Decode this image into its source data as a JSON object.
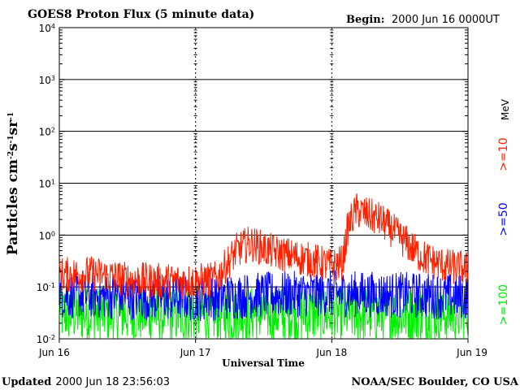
{
  "chart_data": {
    "type": "line",
    "title": "GOES8 Proton Flux (5 minute data)",
    "begin_label": "Begin:",
    "begin_value": "2000 Jun 16 0000UT",
    "xlabel": "Universal Time",
    "ylabel": "Particles cm",
    "ylabel_exp1": "-2",
    "ylabel_s": "s",
    "ylabel_exp2": "-1",
    "ylabel_sr": "sr",
    "ylabel_exp3": "-1",
    "yscale": "log",
    "ylim": [
      0.01,
      10000
    ],
    "yticks": [
      {
        "base": "10",
        "exp": "-2",
        "value": 0.01
      },
      {
        "base": "10",
        "exp": "-1",
        "value": 0.1
      },
      {
        "base": "10",
        "exp": "0",
        "value": 1
      },
      {
        "base": "10",
        "exp": "1",
        "value": 10
      },
      {
        "base": "10",
        "exp": "2",
        "value": 100
      },
      {
        "base": "10",
        "exp": "3",
        "value": 1000
      },
      {
        "base": "10",
        "exp": "4",
        "value": 10000
      }
    ],
    "xticks": [
      "Jun 16",
      "Jun 17",
      "Jun 18",
      "Jun 19"
    ],
    "xlim_days": [
      0,
      3
    ],
    "legend_unit": "MeV",
    "series": [
      {
        "name": ">=10",
        "color": "#ff2000",
        "x": [
          0,
          0.25,
          0.5,
          0.75,
          1.0,
          1.15,
          1.3,
          1.4,
          1.5,
          1.6,
          1.7,
          1.8,
          1.9,
          2.0,
          2.08,
          2.12,
          2.18,
          2.25,
          2.35,
          2.45,
          2.55,
          2.65,
          2.75,
          2.85,
          3.0
        ],
        "y": [
          0.17,
          0.18,
          0.14,
          0.13,
          0.13,
          0.14,
          0.5,
          0.7,
          0.55,
          0.45,
          0.4,
          0.35,
          0.3,
          0.25,
          0.3,
          1.5,
          3.0,
          2.5,
          2.0,
          1.2,
          0.7,
          0.4,
          0.3,
          0.25,
          0.22
        ]
      },
      {
        "name": ">=50",
        "color": "#0000ff",
        "x": [
          0,
          0.5,
          1.0,
          1.5,
          2.0,
          2.5,
          3.0
        ],
        "y": [
          0.07,
          0.065,
          0.06,
          0.07,
          0.075,
          0.07,
          0.065
        ]
      },
      {
        "name": ">=100",
        "color": "#00ee00",
        "x": [
          0,
          0.5,
          1.0,
          1.5,
          2.0,
          2.5,
          3.0
        ],
        "y": [
          0.03,
          0.03,
          0.028,
          0.03,
          0.03,
          0.029,
          0.03
        ]
      }
    ],
    "grid": true
  },
  "footer": {
    "updated_label": "Updated",
    "updated_value": "2000 Jun 18 23:56:03",
    "credit": "NOAA/SEC Boulder, CO USA"
  }
}
